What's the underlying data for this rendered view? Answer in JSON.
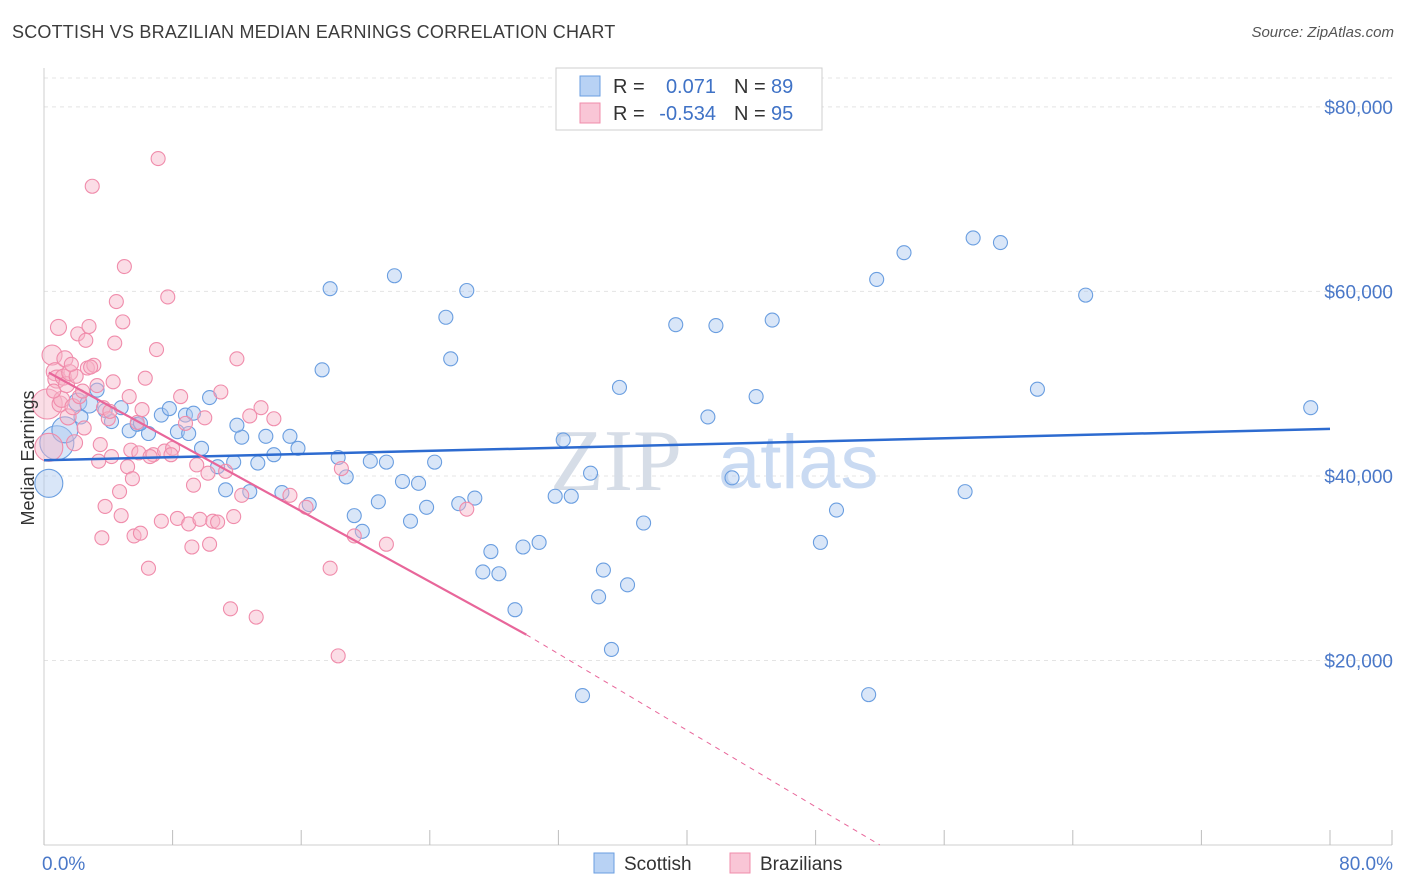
{
  "title": "SCOTTISH VS BRAZILIAN MEDIAN EARNINGS CORRELATION CHART",
  "source": "Source: ZipAtlas.com",
  "watermark": {
    "zip": "ZIP",
    "atlas": "atlas"
  },
  "colors": {
    "scottish": "#6a9ee0",
    "brazilians": "#f08cab",
    "scottish_line": "#2d6bd0",
    "brazilians_line": "#e8669a",
    "axis_text": "#4a78c8"
  },
  "legend": {
    "rows": [
      {
        "r_label": "R =",
        "r_value": "0.071",
        "n_label": "N =",
        "n_value": "89"
      },
      {
        "r_label": "R =",
        "r_value": "-0.534",
        "n_label": "N =",
        "n_value": "95"
      }
    ]
  },
  "bottom_legend": {
    "scottish": "Scottish",
    "brazilians": "Brazilians"
  },
  "chart_data": {
    "type": "scatter",
    "title": "SCOTTISH VS BRAZILIAN MEDIAN EARNINGS CORRELATION CHART",
    "xlabel": "",
    "ylabel": "Median Earnings",
    "xlim": [
      0,
      80
    ],
    "ylim": [
      0,
      84000
    ],
    "x_tick_labels": [
      "0.0%",
      "80.0%"
    ],
    "y_ticks": [
      20000,
      40000,
      60000,
      80000
    ],
    "y_tick_labels": [
      "$20,000",
      "$40,000",
      "$60,000",
      "$80,000"
    ],
    "grid": true,
    "series": [
      {
        "name": "Scottish",
        "r": 0.071,
        "n": 89,
        "trend": {
          "x": [
            0,
            80
          ],
          "y": [
            41700,
            45100
          ]
        },
        "points": [
          [
            0.3,
            39200
          ],
          [
            0.8,
            43600
          ],
          [
            1.3,
            45000
          ],
          [
            2.1,
            48000
          ],
          [
            2.8,
            47800
          ],
          [
            3.3,
            49300
          ],
          [
            4.2,
            45900
          ],
          [
            4.8,
            47400
          ],
          [
            5.3,
            44900
          ],
          [
            5.8,
            45600
          ],
          [
            6.5,
            44600
          ],
          [
            7.3,
            46600
          ],
          [
            7.8,
            47300
          ],
          [
            8.3,
            44800
          ],
          [
            8.8,
            46600
          ],
          [
            9.3,
            46800
          ],
          [
            9.8,
            43000
          ],
          [
            10.3,
            48500
          ],
          [
            10.8,
            41000
          ],
          [
            11.3,
            38500
          ],
          [
            11.8,
            41500
          ],
          [
            12.3,
            44200
          ],
          [
            12.8,
            38300
          ],
          [
            13.3,
            41400
          ],
          [
            13.8,
            44300
          ],
          [
            14.3,
            42300
          ],
          [
            14.8,
            38200
          ],
          [
            15.3,
            44300
          ],
          [
            15.8,
            43000
          ],
          [
            16.5,
            36900
          ],
          [
            17.3,
            51500
          ],
          [
            17.8,
            60300
          ],
          [
            18.3,
            42000
          ],
          [
            18.8,
            39900
          ],
          [
            19.3,
            35700
          ],
          [
            19.8,
            34000
          ],
          [
            20.3,
            41600
          ],
          [
            20.8,
            37200
          ],
          [
            21.3,
            41500
          ],
          [
            21.8,
            61700
          ],
          [
            22.3,
            39400
          ],
          [
            22.8,
            35100
          ],
          [
            23.3,
            39200
          ],
          [
            23.8,
            36600
          ],
          [
            24.3,
            41500
          ],
          [
            25.0,
            57200
          ],
          [
            25.3,
            52700
          ],
          [
            25.8,
            37000
          ],
          [
            26.3,
            60100
          ],
          [
            26.8,
            37600
          ],
          [
            27.3,
            29600
          ],
          [
            27.8,
            31800
          ],
          [
            28.3,
            29400
          ],
          [
            29.3,
            25500
          ],
          [
            29.8,
            32300
          ],
          [
            30.8,
            32800
          ],
          [
            31.8,
            37800
          ],
          [
            32.3,
            43900
          ],
          [
            32.8,
            37800
          ],
          [
            33.5,
            16200
          ],
          [
            34.0,
            40300
          ],
          [
            34.5,
            26900
          ],
          [
            34.8,
            29800
          ],
          [
            35.3,
            21200
          ],
          [
            35.8,
            49600
          ],
          [
            36.3,
            28200
          ],
          [
            37.3,
            34900
          ],
          [
            39.3,
            56400
          ],
          [
            41.3,
            46400
          ],
          [
            41.8,
            56300
          ],
          [
            42.8,
            39800
          ],
          [
            44.3,
            48600
          ],
          [
            45.3,
            56900
          ],
          [
            48.3,
            32800
          ],
          [
            49.3,
            36300
          ],
          [
            51.3,
            16300
          ],
          [
            51.8,
            61300
          ],
          [
            53.5,
            64200
          ],
          [
            57.3,
            38300
          ],
          [
            57.8,
            65800
          ],
          [
            59.5,
            65300
          ],
          [
            61.8,
            49400
          ],
          [
            64.8,
            59600
          ],
          [
            78.8,
            47400
          ],
          [
            2.3,
            46400
          ],
          [
            3.8,
            47100
          ],
          [
            6.0,
            45700
          ],
          [
            9.0,
            44600
          ],
          [
            12.0,
            45500
          ]
        ],
        "sizes": [
          28,
          34,
          26,
          18,
          18,
          14,
          14,
          14,
          14,
          14,
          14,
          14,
          14,
          14,
          14,
          14,
          14,
          14,
          14,
          14,
          14,
          14,
          14,
          14,
          14,
          14,
          14,
          14,
          14,
          14,
          14,
          14,
          14,
          14,
          14,
          14,
          14,
          14,
          14,
          14,
          14,
          14,
          14,
          14,
          14,
          14,
          14,
          14,
          14,
          14,
          14,
          14,
          14,
          14,
          14,
          14,
          14,
          14,
          14,
          14,
          14,
          14,
          14,
          14,
          14,
          14,
          14,
          14,
          14,
          14,
          14,
          14,
          14,
          14,
          14,
          14,
          14,
          14,
          14,
          14,
          14,
          14,
          14,
          14,
          14,
          14,
          14,
          14,
          14
        ]
      },
      {
        "name": "Brazilians",
        "r": -0.534,
        "n": 95,
        "trend": {
          "x": [
            0.3,
            30
          ],
          "y": [
            51200,
            22800
          ]
        },
        "trend_extension": {
          "x": [
            30,
            52
          ],
          "y": [
            22800,
            0
          ]
        },
        "points": [
          [
            0.2,
            47800
          ],
          [
            0.3,
            43100
          ],
          [
            0.5,
            53100
          ],
          [
            0.7,
            51300
          ],
          [
            0.8,
            50500
          ],
          [
            0.9,
            56100
          ],
          [
            1.0,
            47800
          ],
          [
            1.1,
            48300
          ],
          [
            1.2,
            50700
          ],
          [
            1.3,
            52700
          ],
          [
            1.4,
            49900
          ],
          [
            1.5,
            46400
          ],
          [
            1.6,
            51200
          ],
          [
            1.8,
            47500
          ],
          [
            1.9,
            43600
          ],
          [
            2.0,
            50800
          ],
          [
            2.1,
            55400
          ],
          [
            2.2,
            48600
          ],
          [
            2.4,
            49200
          ],
          [
            2.5,
            45200
          ],
          [
            2.6,
            54700
          ],
          [
            2.7,
            51700
          ],
          [
            2.8,
            56200
          ],
          [
            3.0,
            71400
          ],
          [
            3.1,
            52000
          ],
          [
            3.3,
            49800
          ],
          [
            3.4,
            41600
          ],
          [
            3.5,
            43400
          ],
          [
            3.6,
            33300
          ],
          [
            3.7,
            47400
          ],
          [
            3.8,
            36700
          ],
          [
            4.0,
            46200
          ],
          [
            4.2,
            42100
          ],
          [
            4.3,
            50200
          ],
          [
            4.4,
            54400
          ],
          [
            4.5,
            58900
          ],
          [
            4.7,
            38300
          ],
          [
            4.8,
            35700
          ],
          [
            4.9,
            56700
          ],
          [
            5.0,
            62700
          ],
          [
            5.2,
            41000
          ],
          [
            5.3,
            48600
          ],
          [
            5.4,
            42800
          ],
          [
            5.5,
            39700
          ],
          [
            5.6,
            33500
          ],
          [
            5.8,
            45800
          ],
          [
            5.9,
            42500
          ],
          [
            6.0,
            33800
          ],
          [
            6.1,
            47200
          ],
          [
            6.3,
            50600
          ],
          [
            6.5,
            30000
          ],
          [
            6.8,
            42300
          ],
          [
            7.0,
            53700
          ],
          [
            7.1,
            74400
          ],
          [
            7.3,
            35100
          ],
          [
            7.5,
            42700
          ],
          [
            7.7,
            59400
          ],
          [
            8.0,
            43000
          ],
          [
            8.3,
            35400
          ],
          [
            8.5,
            48600
          ],
          [
            8.8,
            45700
          ],
          [
            9.0,
            34800
          ],
          [
            9.2,
            32300
          ],
          [
            9.3,
            39000
          ],
          [
            9.5,
            41200
          ],
          [
            9.7,
            35300
          ],
          [
            10.0,
            46300
          ],
          [
            10.2,
            40300
          ],
          [
            10.3,
            32600
          ],
          [
            10.5,
            35100
          ],
          [
            10.8,
            35000
          ],
          [
            11.0,
            49100
          ],
          [
            11.3,
            40500
          ],
          [
            11.6,
            25600
          ],
          [
            11.8,
            35600
          ],
          [
            12.0,
            52700
          ],
          [
            12.3,
            37900
          ],
          [
            12.8,
            46500
          ],
          [
            13.2,
            24700
          ],
          [
            13.5,
            47400
          ],
          [
            14.3,
            46200
          ],
          [
            15.3,
            37900
          ],
          [
            16.3,
            36600
          ],
          [
            17.8,
            30000
          ],
          [
            18.3,
            20500
          ],
          [
            18.5,
            40800
          ],
          [
            19.3,
            33500
          ],
          [
            21.3,
            32600
          ],
          [
            26.3,
            36400
          ],
          [
            6.6,
            42100
          ],
          [
            7.9,
            42300
          ],
          [
            2.9,
            51800
          ],
          [
            4.1,
            47000
          ],
          [
            1.7,
            52100
          ],
          [
            0.6,
            49200
          ]
        ],
        "sizes": [
          30,
          28,
          20,
          18,
          18,
          16,
          16,
          16,
          16,
          16,
          16,
          16,
          16,
          16,
          16,
          14,
          14,
          14,
          14,
          14,
          14,
          14,
          14,
          14,
          14,
          14,
          14,
          14,
          14,
          14,
          14,
          14,
          14,
          14,
          14,
          14,
          14,
          14,
          14,
          14,
          14,
          14,
          14,
          14,
          14,
          14,
          14,
          14,
          14,
          14,
          14,
          14,
          14,
          14,
          14,
          14,
          14,
          14,
          14,
          14,
          14,
          14,
          14,
          14,
          14,
          14,
          14,
          14,
          14,
          14,
          14,
          14,
          14,
          14,
          14,
          14,
          14,
          14,
          14,
          14,
          14,
          14,
          14,
          14,
          14,
          14,
          14,
          14,
          14,
          14,
          14,
          14,
          14,
          14,
          14
        ]
      }
    ]
  }
}
